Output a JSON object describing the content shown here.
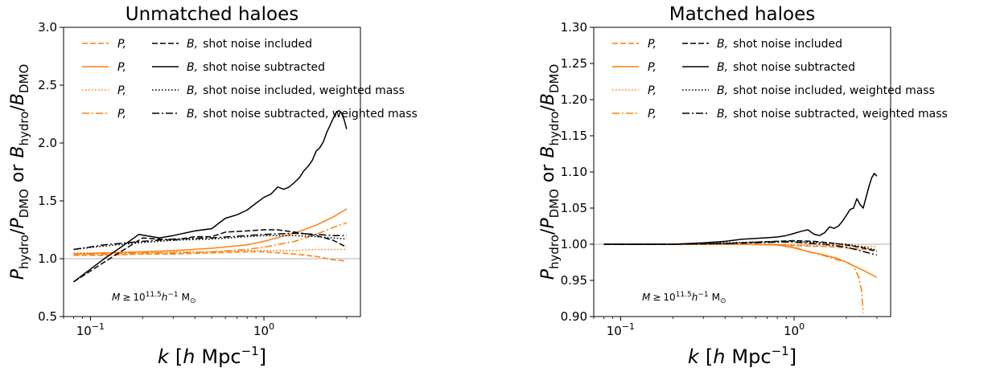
{
  "chart_data": [
    {
      "type": "line",
      "title": "Unmatched haloes",
      "xlabel_parts": [
        "k",
        "[",
        "h",
        "Mpc",
        "−1",
        "]"
      ],
      "ylabel_parts": [
        "P",
        "hydro",
        "/",
        "P",
        "DMO",
        "or",
        "B",
        "hydro",
        "/",
        "B",
        "DMO"
      ],
      "x_scale": "log",
      "xlim": [
        0.07,
        3.6
      ],
      "ylim": [
        0.5,
        3.0
      ],
      "x_ticks": [
        {
          "value": 0.1,
          "base": "10",
          "exp": "−1"
        },
        {
          "value": 1.0,
          "base": "10",
          "exp": "0"
        }
      ],
      "y_ticks": [
        "0.5",
        "1.0",
        "1.5",
        "2.0",
        "2.5",
        "3.0"
      ],
      "reference_line": 1.0,
      "annotation": {
        "var": "M",
        "rel": "≥",
        "base": "10",
        "exp": "11.5",
        "h": "h",
        "hexp": "−1",
        "unit": "M",
        "unit_sub": "⊙"
      },
      "legend": [
        {
          "p_label": "P,",
          "b_label": "B,",
          "text": "shot noise included",
          "style": "dashed"
        },
        {
          "p_label": "P,",
          "b_label": "B,",
          "text": "shot noise subtracted",
          "style": "solid"
        },
        {
          "p_label": "P,",
          "b_label": "B,",
          "text": "shot noise included, weighted mass",
          "style": "dotted"
        },
        {
          "p_label": "P,",
          "b_label": "B,",
          "text": "shot noise subtracted, weighted mass",
          "style": "dashdot"
        }
      ],
      "series": [
        {
          "kind": "P",
          "style": "dashed",
          "color": "#ff7f0e",
          "x": [
            0.08,
            0.12,
            0.2,
            0.3,
            0.5,
            0.8,
            1.0,
            1.5,
            2.0,
            2.5,
            3.0
          ],
          "y": [
            1.03,
            1.03,
            1.04,
            1.04,
            1.05,
            1.06,
            1.06,
            1.04,
            1.02,
            0.99,
            0.98
          ]
        },
        {
          "kind": "P",
          "style": "solid",
          "color": "#ff7f0e",
          "x": [
            0.08,
            0.12,
            0.2,
            0.3,
            0.5,
            0.8,
            1.0,
            1.5,
            2.0,
            2.5,
            3.0
          ],
          "y": [
            1.04,
            1.05,
            1.06,
            1.07,
            1.09,
            1.12,
            1.15,
            1.22,
            1.29,
            1.36,
            1.43
          ]
        },
        {
          "kind": "P",
          "style": "dotted",
          "color": "#ff7f0e",
          "x": [
            0.08,
            0.12,
            0.2,
            0.3,
            0.5,
            0.8,
            1.0,
            1.5,
            2.0,
            2.5,
            3.0
          ],
          "y": [
            1.05,
            1.05,
            1.05,
            1.06,
            1.06,
            1.07,
            1.07,
            1.07,
            1.08,
            1.08,
            1.08
          ]
        },
        {
          "kind": "P",
          "style": "dashdot",
          "color": "#ff7f0e",
          "x": [
            0.08,
            0.12,
            0.2,
            0.3,
            0.5,
            0.8,
            1.0,
            1.5,
            2.0,
            2.5,
            3.0
          ],
          "y": [
            1.04,
            1.04,
            1.05,
            1.05,
            1.06,
            1.08,
            1.1,
            1.15,
            1.21,
            1.27,
            1.31
          ]
        },
        {
          "kind": "B",
          "style": "dashed",
          "color": "#000000",
          "x": [
            0.08,
            0.12,
            0.2,
            0.3,
            0.4,
            0.5,
            0.6,
            0.8,
            1.0,
            1.2,
            1.5,
            2.0,
            2.5,
            3.0
          ],
          "y": [
            0.8,
            0.97,
            1.18,
            1.16,
            1.19,
            1.19,
            1.23,
            1.24,
            1.25,
            1.25,
            1.23,
            1.2,
            1.16,
            1.1
          ]
        },
        {
          "kind": "B",
          "style": "solid",
          "color": "#000000",
          "x": [
            0.08,
            0.12,
            0.15,
            0.19,
            0.25,
            0.3,
            0.4,
            0.5,
            0.6,
            0.7,
            0.8,
            0.9,
            1.0,
            1.1,
            1.2,
            1.3,
            1.4,
            1.5,
            1.6,
            1.7,
            1.8,
            1.9,
            2.0,
            2.1,
            2.2,
            2.3,
            2.4,
            2.5,
            2.6,
            2.7,
            2.8,
            2.9,
            3.0
          ],
          "y": [
            0.8,
            1.0,
            1.1,
            1.21,
            1.18,
            1.2,
            1.24,
            1.26,
            1.35,
            1.38,
            1.42,
            1.48,
            1.53,
            1.56,
            1.62,
            1.6,
            1.62,
            1.66,
            1.7,
            1.76,
            1.8,
            1.85,
            1.93,
            1.96,
            2.01,
            2.09,
            2.15,
            2.21,
            2.26,
            2.28,
            2.26,
            2.2,
            2.12
          ]
        },
        {
          "kind": "B",
          "style": "dotted",
          "color": "#000000",
          "x": [
            0.08,
            0.12,
            0.2,
            0.3,
            0.5,
            0.8,
            1.0,
            1.5,
            2.0,
            2.5,
            3.0
          ],
          "y": [
            1.08,
            1.11,
            1.14,
            1.16,
            1.17,
            1.19,
            1.2,
            1.2,
            1.19,
            1.18,
            1.17
          ]
        },
        {
          "kind": "B",
          "style": "dashdot",
          "color": "#000000",
          "x": [
            0.08,
            0.12,
            0.2,
            0.3,
            0.5,
            0.8,
            1.0,
            1.5,
            2.0,
            2.5,
            3.0
          ],
          "y": [
            1.08,
            1.12,
            1.15,
            1.17,
            1.18,
            1.2,
            1.21,
            1.22,
            1.21,
            1.2,
            1.2
          ]
        }
      ]
    },
    {
      "type": "line",
      "title": "Matched haloes",
      "xlabel_parts": [
        "k",
        "[",
        "h",
        "Mpc",
        "−1",
        "]"
      ],
      "ylabel_parts": [
        "P",
        "hydro",
        "/",
        "P",
        "DMO",
        "or",
        "B",
        "hydro",
        "/",
        "B",
        "DMO"
      ],
      "x_scale": "log",
      "xlim": [
        0.07,
        3.6
      ],
      "ylim": [
        0.9,
        1.3
      ],
      "x_ticks": [
        {
          "value": 0.1,
          "base": "10",
          "exp": "−1"
        },
        {
          "value": 1.0,
          "base": "10",
          "exp": "0"
        }
      ],
      "y_ticks": [
        "0.90",
        "0.95",
        "1.00",
        "1.05",
        "1.10",
        "1.15",
        "1.20",
        "1.25",
        "1.30"
      ],
      "reference_line": 1.0,
      "annotation": {
        "var": "M",
        "rel": "≥",
        "base": "10",
        "exp": "11.5",
        "h": "h",
        "hexp": "−1",
        "unit": "M",
        "unit_sub": "⊙"
      },
      "legend": [
        {
          "p_label": "P,",
          "b_label": "B,",
          "text": "shot noise included",
          "style": "dashed"
        },
        {
          "p_label": "P,",
          "b_label": "B,",
          "text": "shot noise subtracted",
          "style": "solid"
        },
        {
          "p_label": "P,",
          "b_label": "B,",
          "text": "shot noise included, weighted mass",
          "style": "dotted"
        },
        {
          "p_label": "P,",
          "b_label": "B,",
          "text": "shot noise subtracted, weighted mass",
          "style": "dashdot"
        }
      ],
      "series": [
        {
          "kind": "P",
          "style": "dashed",
          "color": "#ff7f0e",
          "x": [
            0.08,
            0.2,
            0.5,
            0.8,
            1.0,
            1.5,
            2.0,
            2.5,
            3.0
          ],
          "y": [
            1.0,
            1.0,
            1.0,
            0.999,
            0.998,
            0.997,
            0.995,
            0.993,
            0.992
          ]
        },
        {
          "kind": "P",
          "style": "solid",
          "color": "#ff7f0e",
          "x": [
            0.08,
            0.2,
            0.5,
            0.8,
            1.0,
            1.2,
            1.5,
            1.8,
            2.0,
            2.3,
            2.6,
            3.0
          ],
          "y": [
            1.0,
            1.0,
            1.0,
            0.999,
            0.995,
            0.99,
            0.985,
            0.98,
            0.975,
            0.968,
            0.962,
            0.954
          ]
        },
        {
          "kind": "P",
          "style": "dotted",
          "color": "#ff7f0e",
          "x": [
            0.08,
            0.2,
            0.5,
            0.8,
            1.0,
            1.5,
            2.0,
            2.5,
            3.0
          ],
          "y": [
            1.0,
            1.0,
            1.0,
            1.0,
            0.999,
            0.998,
            0.998,
            0.997,
            0.997
          ]
        },
        {
          "kind": "P",
          "style": "dashdot",
          "color": "#ff7f0e",
          "x": [
            0.08,
            0.2,
            0.5,
            0.8,
            1.0,
            1.2,
            1.5,
            1.8,
            2.0,
            2.2,
            2.35,
            2.45,
            2.5
          ],
          "y": [
            1.0,
            1.0,
            1.0,
            0.999,
            0.996,
            0.99,
            0.984,
            0.978,
            0.976,
            0.97,
            0.955,
            0.935,
            0.905
          ]
        },
        {
          "kind": "B",
          "style": "dashed",
          "color": "#000000",
          "x": [
            0.08,
            0.2,
            0.4,
            0.6,
            0.8,
            1.0,
            1.3,
            1.6,
            2.0,
            2.5,
            3.0
          ],
          "y": [
            1.0,
            1.0,
            1.001,
            1.003,
            1.004,
            1.005,
            1.004,
            1.002,
            0.999,
            0.995,
            0.99
          ]
        },
        {
          "kind": "B",
          "style": "solid",
          "color": "#000000",
          "x": [
            0.08,
            0.2,
            0.3,
            0.4,
            0.5,
            0.6,
            0.7,
            0.8,
            0.9,
            1.0,
            1.1,
            1.2,
            1.3,
            1.4,
            1.5,
            1.6,
            1.7,
            1.8,
            1.9,
            2.0,
            2.1,
            2.2,
            2.3,
            2.4,
            2.5,
            2.6,
            2.7,
            2.8,
            2.9,
            3.0
          ],
          "y": [
            1.0,
            1.0,
            1.002,
            1.004,
            1.007,
            1.008,
            1.009,
            1.01,
            1.012,
            1.015,
            1.018,
            1.02,
            1.014,
            1.012,
            1.016,
            1.024,
            1.022,
            1.025,
            1.032,
            1.04,
            1.048,
            1.05,
            1.063,
            1.055,
            1.05,
            1.065,
            1.08,
            1.092,
            1.098,
            1.094
          ]
        },
        {
          "kind": "B",
          "style": "dotted",
          "color": "#000000",
          "x": [
            0.08,
            0.2,
            0.4,
            0.6,
            0.8,
            1.0,
            1.5,
            2.0,
            2.5,
            3.0
          ],
          "y": [
            1.0,
            1.0,
            1.002,
            1.003,
            1.004,
            1.004,
            1.002,
            1.0,
            0.996,
            0.992
          ]
        },
        {
          "kind": "B",
          "style": "dashdot",
          "color": "#000000",
          "x": [
            0.08,
            0.2,
            0.4,
            0.6,
            0.8,
            1.0,
            1.5,
            2.0,
            2.5,
            3.0
          ],
          "y": [
            1.0,
            1.0,
            1.001,
            1.002,
            1.003,
            1.003,
            1.0,
            0.996,
            0.99,
            0.985
          ]
        }
      ]
    }
  ]
}
